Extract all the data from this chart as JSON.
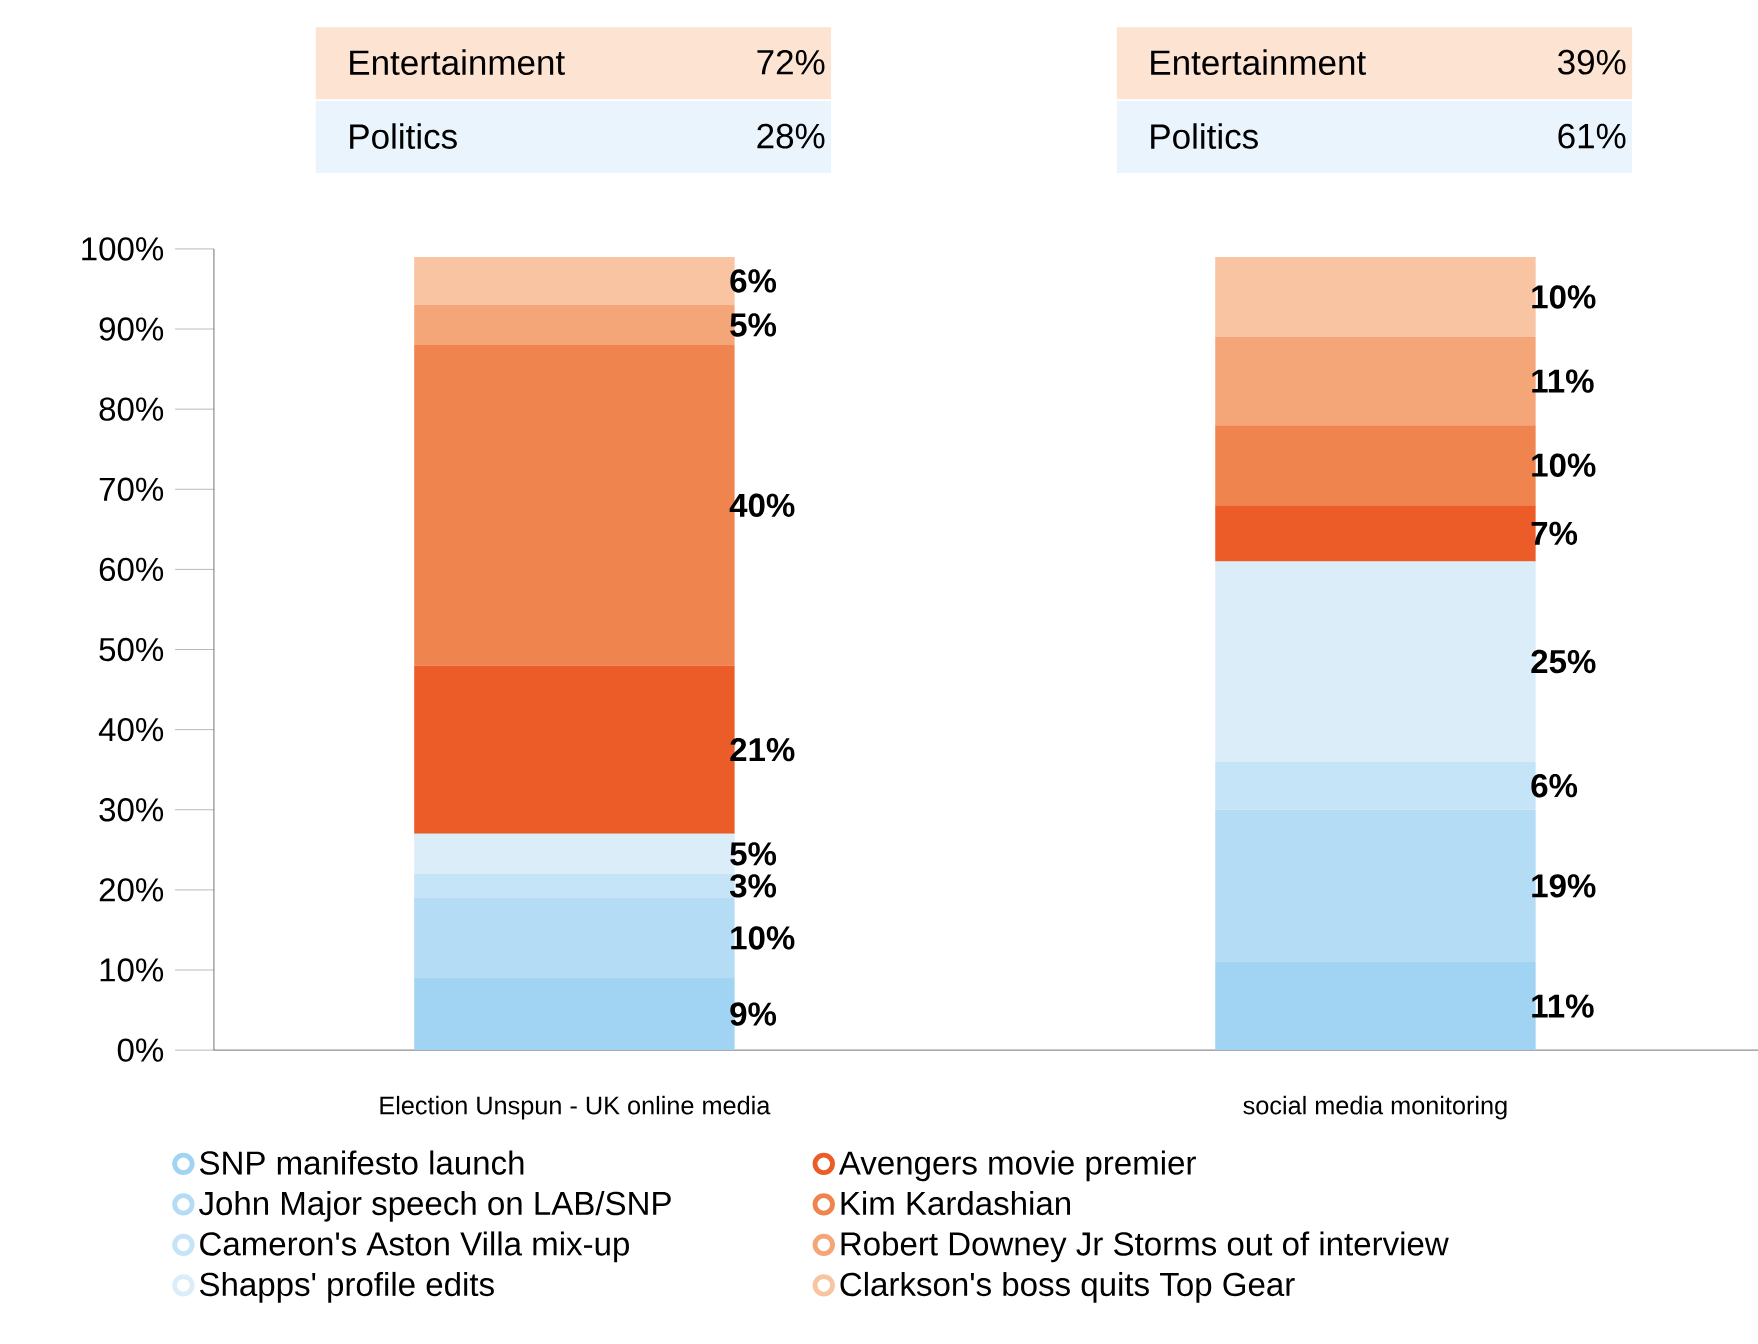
{
  "chart_data": {
    "type": "bar",
    "stacked": true,
    "categories": [
      "Election Unspun - UK online media",
      "social media monitoring"
    ],
    "series": [
      {
        "name": "SNP manifesto launch",
        "color": "#a0d4f2",
        "values": [
          9,
          11
        ],
        "value_labels": [
          "9%",
          "11%"
        ]
      },
      {
        "name": "John Major speech on LAB/SNP",
        "color": "#b5dcf5",
        "values": [
          10,
          19
        ],
        "value_labels": [
          "10%",
          "19%"
        ]
      },
      {
        "name": "Cameron's Aston Villa mix-up",
        "color": "#c6e4f7",
        "values": [
          3,
          6
        ],
        "value_labels": [
          "3%",
          "6%"
        ]
      },
      {
        "name": "Shapps' profile edits",
        "color": "#dcedfa",
        "values": [
          5,
          25
        ],
        "value_labels": [
          "5%",
          "25%"
        ]
      },
      {
        "name": "Avengers movie premier",
        "color": "#ec5c28",
        "values": [
          21,
          7
        ],
        "value_labels": [
          "21%",
          "7%"
        ]
      },
      {
        "name": "Kim Kardashian",
        "color": "#f0844e",
        "values": [
          40,
          10
        ],
        "value_labels": [
          "40%",
          "10%"
        ]
      },
      {
        "name": "Robert Downey Jr Storms out of interview",
        "color": "#f4a679",
        "values": [
          5,
          11
        ],
        "value_labels": [
          "5%",
          "11%"
        ]
      },
      {
        "name": "Clarkson's boss quits Top Gear",
        "color": "#f8c4a2",
        "values": [
          6,
          10
        ],
        "value_labels": [
          "6%",
          "10%"
        ]
      }
    ],
    "ylim": [
      0,
      100
    ],
    "yticks": [
      {
        "value": 0,
        "label": "0%"
      },
      {
        "value": 10,
        "label": "10%"
      },
      {
        "value": 20,
        "label": "20%"
      },
      {
        "value": 30,
        "label": "30%"
      },
      {
        "value": 40,
        "label": "40%"
      },
      {
        "value": 50,
        "label": "50%"
      },
      {
        "value": 60,
        "label": "60%"
      },
      {
        "value": 70,
        "label": "70%"
      },
      {
        "value": 80,
        "label": "80%"
      },
      {
        "value": 90,
        "label": "90%"
      },
      {
        "value": 100,
        "label": "100%"
      }
    ],
    "annotations": [
      "Entertainment",
      "72%",
      "Politics",
      "28%",
      "Entertainment",
      "39%",
      "Politics",
      "61%"
    ],
    "legend": "bottom"
  }
}
